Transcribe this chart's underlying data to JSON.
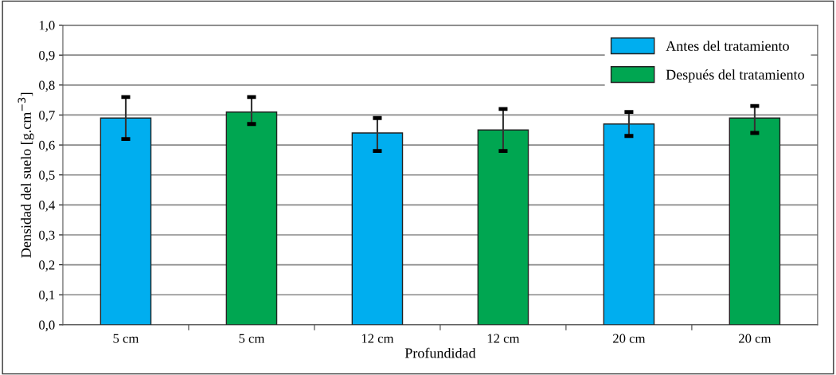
{
  "chart_data": {
    "type": "bar",
    "xlabel": "Profundidad",
    "ylabel": "Densidad del suelo [g.cm$^{−3}$]",
    "categories": [
      "5 cm",
      "5 cm",
      "12 cm",
      "12 cm",
      "20 cm",
      "20 cm"
    ],
    "series": [
      {
        "name": "Antes del tratamiento",
        "color": "#00aeef",
        "values": [
          0.69,
          null,
          0.64,
          null,
          0.67,
          null
        ],
        "errors": [
          [
            0.62,
            0.76
          ],
          null,
          [
            0.58,
            0.69
          ],
          null,
          [
            0.63,
            0.71
          ],
          null
        ]
      },
      {
        "name": "Después del tratamiento",
        "color": "#00a651",
        "values": [
          null,
          0.71,
          null,
          0.65,
          null,
          0.69
        ],
        "errors": [
          null,
          [
            0.67,
            0.76
          ],
          null,
          [
            0.58,
            0.72
          ],
          null,
          [
            0.64,
            0.73
          ]
        ]
      }
    ],
    "ylim": [
      0,
      1
    ],
    "yticks": [
      {
        "value": 0,
        "label": "0,0"
      },
      {
        "value": 0.1,
        "label": "0,1"
      },
      {
        "value": 0.2,
        "label": "0,2"
      },
      {
        "value": 0.3,
        "label": "0,3"
      },
      {
        "value": 0.4,
        "label": "0,4"
      },
      {
        "value": 0.5,
        "label": "0,5"
      },
      {
        "value": 0.6,
        "label": "0,6"
      },
      {
        "value": 0.7,
        "label": "0,7"
      },
      {
        "value": 0.8,
        "label": "0,8"
      },
      {
        "value": 0.9,
        "label": "0,9"
      },
      {
        "value": 1,
        "label": "1,0"
      }
    ],
    "grid": "y",
    "legend": "top right"
  }
}
